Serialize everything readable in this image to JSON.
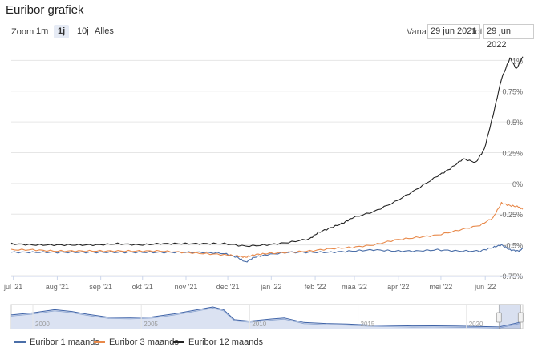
{
  "app": {
    "title": "Euribor grafiek"
  },
  "toolbar": {
    "zoom_label": "Zoom",
    "buttons": [
      {
        "label": "1m",
        "active": false
      },
      {
        "label": "1j",
        "active": true
      },
      {
        "label": "10j",
        "active": false
      },
      {
        "label": "Alles",
        "active": false
      }
    ],
    "from_label": "Vanaf",
    "from_value": "29 jun 2021",
    "to_label": "Tot",
    "to_value": "29 jun 2022"
  },
  "colors": {
    "euribor_1m": "#4a6ea8",
    "euribor_3m": "#e8894a",
    "euribor_12m": "#222222",
    "navigator_fill": "#dbe2f2",
    "navigator_line": "#3f63a7"
  },
  "chart_data": {
    "type": "line",
    "ylim": [
      -0.75,
      1.1
    ],
    "yticks": [
      "1%",
      "0.75%",
      "0.5%",
      "0.25%",
      "0%",
      "-0.25%",
      "-0.5%",
      "-0.75%"
    ],
    "ytick_values": [
      1,
      0.75,
      0.5,
      0.25,
      0,
      -0.25,
      -0.5,
      -0.75
    ],
    "xlim": [
      0,
      12
    ],
    "xticks": [
      "jul '21",
      "aug '21",
      "sep '21",
      "okt '21",
      "nov '21",
      "dec '21",
      "jan '22",
      "feb '22",
      "maa '22",
      "apr '22",
      "mei '22",
      "jun '22"
    ],
    "xtick_values": [
      0.05,
      1.08,
      2.1,
      3.08,
      4.1,
      5.08,
      6.1,
      7.13,
      8.05,
      9.08,
      10.08,
      11.12
    ],
    "legend_position": "bottom-left",
    "grid": true,
    "series": [
      {
        "name": "Euribor 1 maands",
        "color_key": "euribor_1m",
        "x": [
          0,
          0.5,
          1,
          1.5,
          2,
          2.5,
          3,
          3.5,
          4,
          4.5,
          5,
          5.3,
          5.5,
          5.7,
          6,
          6.5,
          7,
          7.5,
          8,
          8.5,
          9,
          9.5,
          10,
          10.5,
          11,
          11.3,
          11.5,
          11.7,
          11.9,
          12
        ],
        "values": [
          -0.56,
          -0.56,
          -0.56,
          -0.56,
          -0.56,
          -0.56,
          -0.56,
          -0.56,
          -0.56,
          -0.56,
          -0.57,
          -0.6,
          -0.64,
          -0.6,
          -0.58,
          -0.56,
          -0.56,
          -0.56,
          -0.55,
          -0.54,
          -0.55,
          -0.55,
          -0.54,
          -0.55,
          -0.55,
          -0.52,
          -0.5,
          -0.54,
          -0.55,
          -0.53
        ]
      },
      {
        "name": "Euribor 3 maands",
        "color_key": "euribor_3m",
        "x": [
          0,
          0.5,
          1,
          1.5,
          2,
          2.5,
          3,
          3.5,
          4,
          4.5,
          5,
          5.3,
          5.5,
          5.7,
          6,
          6.5,
          7,
          7.5,
          8,
          8.5,
          9,
          9.5,
          10,
          10.5,
          11,
          11.3,
          11.5,
          11.7,
          11.9,
          12
        ],
        "values": [
          -0.54,
          -0.54,
          -0.55,
          -0.55,
          -0.55,
          -0.55,
          -0.55,
          -0.55,
          -0.56,
          -0.57,
          -0.58,
          -0.59,
          -0.6,
          -0.58,
          -0.57,
          -0.56,
          -0.55,
          -0.53,
          -0.52,
          -0.5,
          -0.46,
          -0.44,
          -0.42,
          -0.38,
          -0.34,
          -0.28,
          -0.16,
          -0.18,
          -0.19,
          -0.21
        ]
      },
      {
        "name": "Euribor 12 maands",
        "color_key": "euribor_12m",
        "x": [
          0,
          0.5,
          1,
          1.5,
          2,
          2.5,
          3,
          3.5,
          4,
          4.5,
          5,
          5.5,
          6,
          6.5,
          7,
          7.2,
          7.5,
          7.8,
          8,
          8.5,
          9,
          9.5,
          10,
          10.3,
          10.6,
          10.9,
          11.1,
          11.3,
          11.5,
          11.7,
          11.85,
          12
        ],
        "values": [
          -0.49,
          -0.5,
          -0.5,
          -0.5,
          -0.5,
          -0.49,
          -0.5,
          -0.49,
          -0.49,
          -0.49,
          -0.49,
          -0.51,
          -0.5,
          -0.48,
          -0.45,
          -0.4,
          -0.36,
          -0.32,
          -0.28,
          -0.23,
          -0.15,
          -0.05,
          0.06,
          0.12,
          0.2,
          0.17,
          0.28,
          0.55,
          0.85,
          1.02,
          0.93,
          1.03
        ]
      }
    ]
  },
  "navigator": {
    "labels": [
      "2000",
      "2005",
      "2010",
      "2015",
      "2020"
    ],
    "x": [
      1999,
      2000,
      2001,
      2001.8,
      2002.5,
      2003.5,
      2004.5,
      2005.5,
      2006.5,
      2007.5,
      2008.3,
      2008.8,
      2009.3,
      2010,
      2011,
      2011.6,
      2012.5,
      2013.5,
      2014.5,
      2015.5,
      2016.5,
      2017.5,
      2018.5,
      2019.5,
      2020.5,
      2021.5,
      2022.5
    ],
    "values": [
      3.0,
      3.6,
      4.5,
      4.0,
      3.2,
      2.3,
      2.2,
      2.4,
      3.3,
      4.4,
      5.3,
      4.5,
      1.6,
      1.2,
      1.8,
      2.1,
      0.8,
      0.5,
      0.35,
      0.05,
      -0.1,
      -0.2,
      -0.18,
      -0.25,
      -0.35,
      -0.5,
      0.9
    ],
    "xlim": [
      1999,
      2022.6
    ],
    "ylim": [
      -1,
      6
    ],
    "selected_range": [
      2021.5,
      2022.5
    ]
  }
}
